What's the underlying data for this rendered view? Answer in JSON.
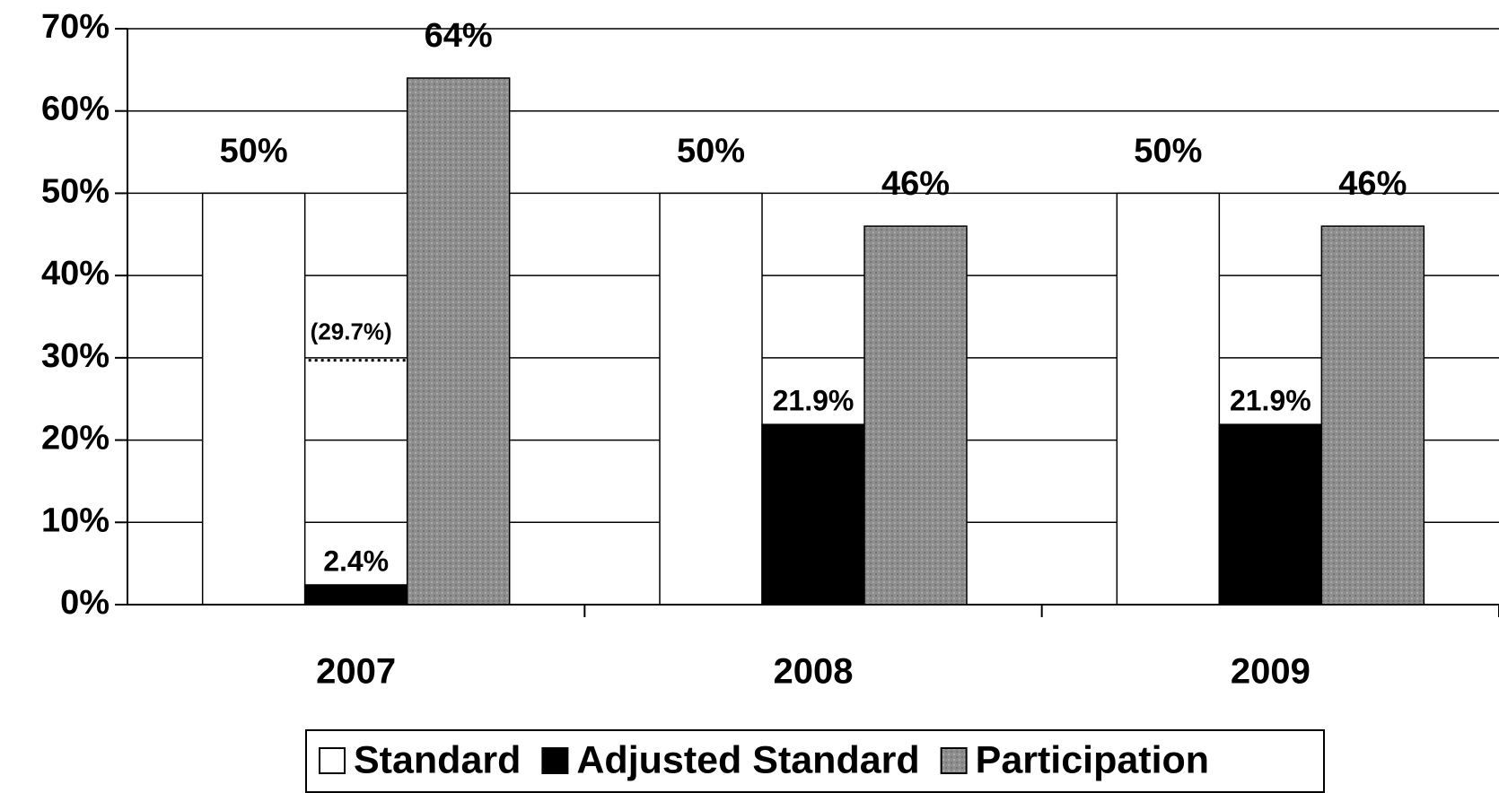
{
  "chart_data": {
    "type": "bar",
    "categories": [
      "2007",
      "2008",
      "2009"
    ],
    "series": [
      {
        "name": "Standard",
        "color": "#ffffff",
        "values": [
          50,
          50,
          50
        ],
        "value_labels": [
          "50%",
          "50%",
          "50%"
        ]
      },
      {
        "name": "Adjusted Standard",
        "color": "#000000",
        "values": [
          2.4,
          21.9,
          21.9
        ],
        "value_labels": [
          "2.4%",
          "21.9%",
          "21.9%"
        ]
      },
      {
        "name": "Participation",
        "color": "#8e8e8e",
        "values": [
          64,
          46,
          46
        ],
        "value_labels": [
          "64%",
          "46%",
          "46%"
        ]
      }
    ],
    "reference_line": {
      "value": 29.7,
      "label": "(29.7%)"
    },
    "ylim": [
      0,
      70
    ],
    "yticks": [
      {
        "value": 0,
        "label": "0%"
      },
      {
        "value": 10,
        "label": "10%"
      },
      {
        "value": 20,
        "label": "20%"
      },
      {
        "value": 30,
        "label": "30%"
      },
      {
        "value": 40,
        "label": "40%"
      },
      {
        "value": 50,
        "label": "50%"
      },
      {
        "value": 60,
        "label": "60%"
      },
      {
        "value": 70,
        "label": "70%"
      }
    ],
    "grid": true
  }
}
